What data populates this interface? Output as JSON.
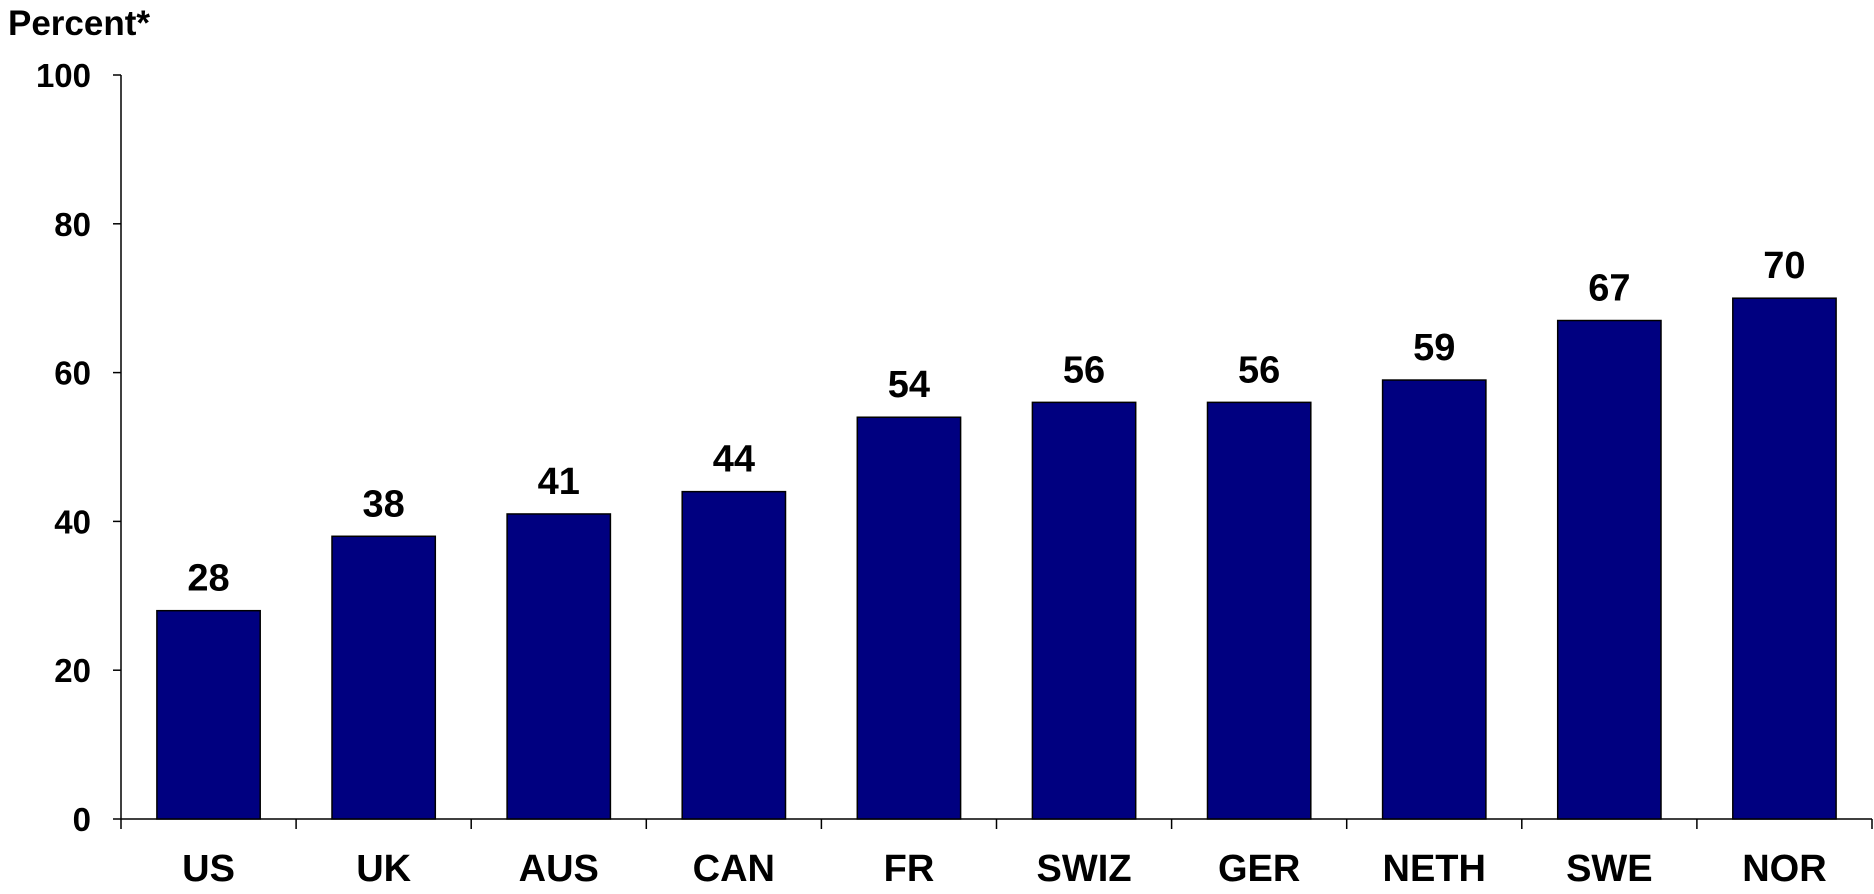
{
  "chart_data": {
    "type": "bar",
    "ylabel": "Percent*",
    "categories": [
      "US",
      "UK",
      "AUS",
      "CAN",
      "FR",
      "SWIZ",
      "GER",
      "NETH",
      "SWE",
      "NOR"
    ],
    "values": [
      28,
      38,
      41,
      44,
      54,
      56,
      56,
      59,
      67,
      70
    ],
    "data_labels": [
      "28",
      "38",
      "41",
      "44",
      "54",
      "56",
      "56",
      "59",
      "67",
      "70"
    ],
    "ylim": [
      0,
      100
    ],
    "yticks": [
      0,
      20,
      40,
      60,
      80,
      100
    ],
    "bar_color": "#000080",
    "grid": false,
    "legend": "none"
  }
}
